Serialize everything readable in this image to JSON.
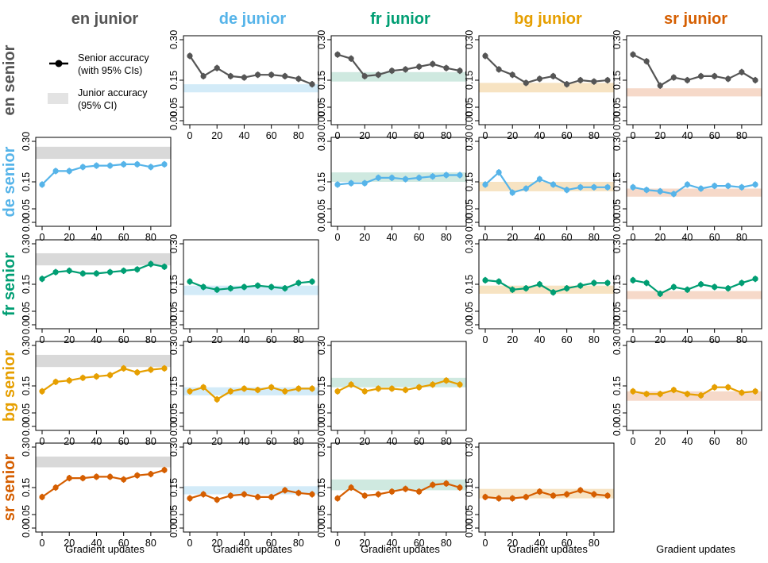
{
  "legend": {
    "senior": "Senior accuracy\n(with 95% CIs)",
    "junior": "Junior accuracy\n(95% CI)"
  },
  "xlabel": "Gradient updates",
  "languages": [
    "en",
    "de",
    "fr",
    "bg",
    "sr"
  ],
  "col_titles": [
    "en junior",
    "de junior",
    "fr junior",
    "bg junior",
    "sr junior"
  ],
  "row_titles": [
    "en senior",
    "de senior",
    "fr senior",
    "bg senior",
    "sr senior"
  ],
  "colors": {
    "en": "#555555",
    "de": "#56B4E9",
    "fr": "#009E73",
    "bg": "#E69F00",
    "sr": "#D55E00"
  },
  "band_colors": {
    "en": "#d9d9d9",
    "de": "#d3ebf8",
    "fr": "#cfe9e0",
    "bg": "#f7e3c2",
    "sr": "#f6d9c9"
  },
  "chart_data": {
    "type": "line",
    "x": [
      0,
      10,
      20,
      30,
      40,
      50,
      60,
      70,
      80,
      90
    ],
    "x_ticks": [
      0,
      20,
      40,
      60,
      80
    ],
    "ylim": [
      0,
      0.3
    ],
    "y_ticks": [
      "0.00",
      "0.05",
      "0.15",
      "0.30"
    ],
    "panels": [
      {
        "senior": "en",
        "junior": "de",
        "junior_ci": [
          0.105,
          0.135
        ],
        "values": [
          0.24,
          0.165,
          0.195,
          0.165,
          0.16,
          0.17,
          0.17,
          0.165,
          0.155,
          0.135
        ]
      },
      {
        "senior": "en",
        "junior": "fr",
        "junior_ci": [
          0.145,
          0.18
        ],
        "values": [
          0.245,
          0.23,
          0.165,
          0.17,
          0.185,
          0.19,
          0.2,
          0.21,
          0.195,
          0.185
        ]
      },
      {
        "senior": "en",
        "junior": "bg",
        "junior_ci": [
          0.105,
          0.14
        ],
        "values": [
          0.24,
          0.19,
          0.17,
          0.14,
          0.155,
          0.165,
          0.135,
          0.15,
          0.145,
          0.15
        ]
      },
      {
        "senior": "en",
        "junior": "sr",
        "junior_ci": [
          0.09,
          0.12
        ],
        "values": [
          0.245,
          0.22,
          0.13,
          0.16,
          0.15,
          0.165,
          0.165,
          0.155,
          0.18,
          0.15
        ]
      },
      {
        "senior": "de",
        "junior": "en",
        "junior_ci": [
          0.235,
          0.28
        ],
        "values": [
          0.14,
          0.19,
          0.19,
          0.205,
          0.21,
          0.21,
          0.215,
          0.215,
          0.205,
          0.215
        ]
      },
      {
        "senior": "de",
        "junior": "fr",
        "junior_ci": [
          0.15,
          0.185
        ],
        "values": [
          0.14,
          0.145,
          0.145,
          0.165,
          0.165,
          0.16,
          0.165,
          0.17,
          0.175,
          0.175
        ]
      },
      {
        "senior": "de",
        "junior": "bg",
        "junior_ci": [
          0.115,
          0.15
        ],
        "values": [
          0.14,
          0.185,
          0.11,
          0.125,
          0.16,
          0.14,
          0.12,
          0.13,
          0.13,
          0.13
        ]
      },
      {
        "senior": "de",
        "junior": "sr",
        "junior_ci": [
          0.095,
          0.125
        ],
        "values": [
          0.13,
          0.12,
          0.115,
          0.105,
          0.14,
          0.125,
          0.135,
          0.135,
          0.13,
          0.14
        ]
      },
      {
        "senior": "fr",
        "junior": "en",
        "junior_ci": [
          0.22,
          0.265
        ],
        "values": [
          0.17,
          0.195,
          0.2,
          0.19,
          0.19,
          0.195,
          0.2,
          0.205,
          0.225,
          0.215
        ]
      },
      {
        "senior": "fr",
        "junior": "de",
        "junior_ci": [
          0.11,
          0.145
        ],
        "values": [
          0.16,
          0.14,
          0.13,
          0.135,
          0.14,
          0.145,
          0.14,
          0.135,
          0.155,
          0.16
        ]
      },
      {
        "senior": "fr",
        "junior": "bg",
        "junior_ci": [
          0.115,
          0.145
        ],
        "values": [
          0.165,
          0.16,
          0.13,
          0.135,
          0.15,
          0.12,
          0.135,
          0.145,
          0.155,
          0.155
        ]
      },
      {
        "senior": "fr",
        "junior": "sr",
        "junior_ci": [
          0.095,
          0.125
        ],
        "values": [
          0.165,
          0.155,
          0.115,
          0.14,
          0.13,
          0.15,
          0.14,
          0.135,
          0.155,
          0.17
        ]
      },
      {
        "senior": "bg",
        "junior": "en",
        "junior_ci": [
          0.22,
          0.265
        ],
        "values": [
          0.13,
          0.165,
          0.17,
          0.18,
          0.185,
          0.19,
          0.215,
          0.2,
          0.21,
          0.215
        ]
      },
      {
        "senior": "bg",
        "junior": "de",
        "junior_ci": [
          0.115,
          0.145
        ],
        "values": [
          0.13,
          0.145,
          0.1,
          0.13,
          0.14,
          0.135,
          0.145,
          0.13,
          0.14,
          0.14
        ]
      },
      {
        "senior": "bg",
        "junior": "fr",
        "junior_ci": [
          0.145,
          0.18
        ],
        "values": [
          0.13,
          0.155,
          0.13,
          0.14,
          0.14,
          0.135,
          0.145,
          0.155,
          0.17,
          0.155
        ]
      },
      {
        "senior": "bg",
        "junior": "sr",
        "junior_ci": [
          0.095,
          0.13
        ],
        "values": [
          0.13,
          0.12,
          0.12,
          0.135,
          0.12,
          0.115,
          0.145,
          0.145,
          0.125,
          0.13
        ]
      },
      {
        "senior": "sr",
        "junior": "en",
        "junior_ci": [
          0.225,
          0.265
        ],
        "values": [
          0.115,
          0.15,
          0.185,
          0.185,
          0.19,
          0.19,
          0.18,
          0.195,
          0.2,
          0.215
        ]
      },
      {
        "senior": "sr",
        "junior": "de",
        "junior_ci": [
          0.125,
          0.155
        ],
        "values": [
          0.11,
          0.125,
          0.105,
          0.12,
          0.125,
          0.115,
          0.115,
          0.14,
          0.13,
          0.125
        ]
      },
      {
        "senior": "sr",
        "junior": "fr",
        "junior_ci": [
          0.14,
          0.18
        ],
        "values": [
          0.11,
          0.15,
          0.12,
          0.125,
          0.135,
          0.145,
          0.135,
          0.16,
          0.165,
          0.15
        ]
      },
      {
        "senior": "sr",
        "junior": "bg",
        "junior_ci": [
          0.11,
          0.145
        ],
        "values": [
          0.115,
          0.11,
          0.11,
          0.115,
          0.135,
          0.12,
          0.125,
          0.14,
          0.125,
          0.12
        ]
      }
    ]
  }
}
